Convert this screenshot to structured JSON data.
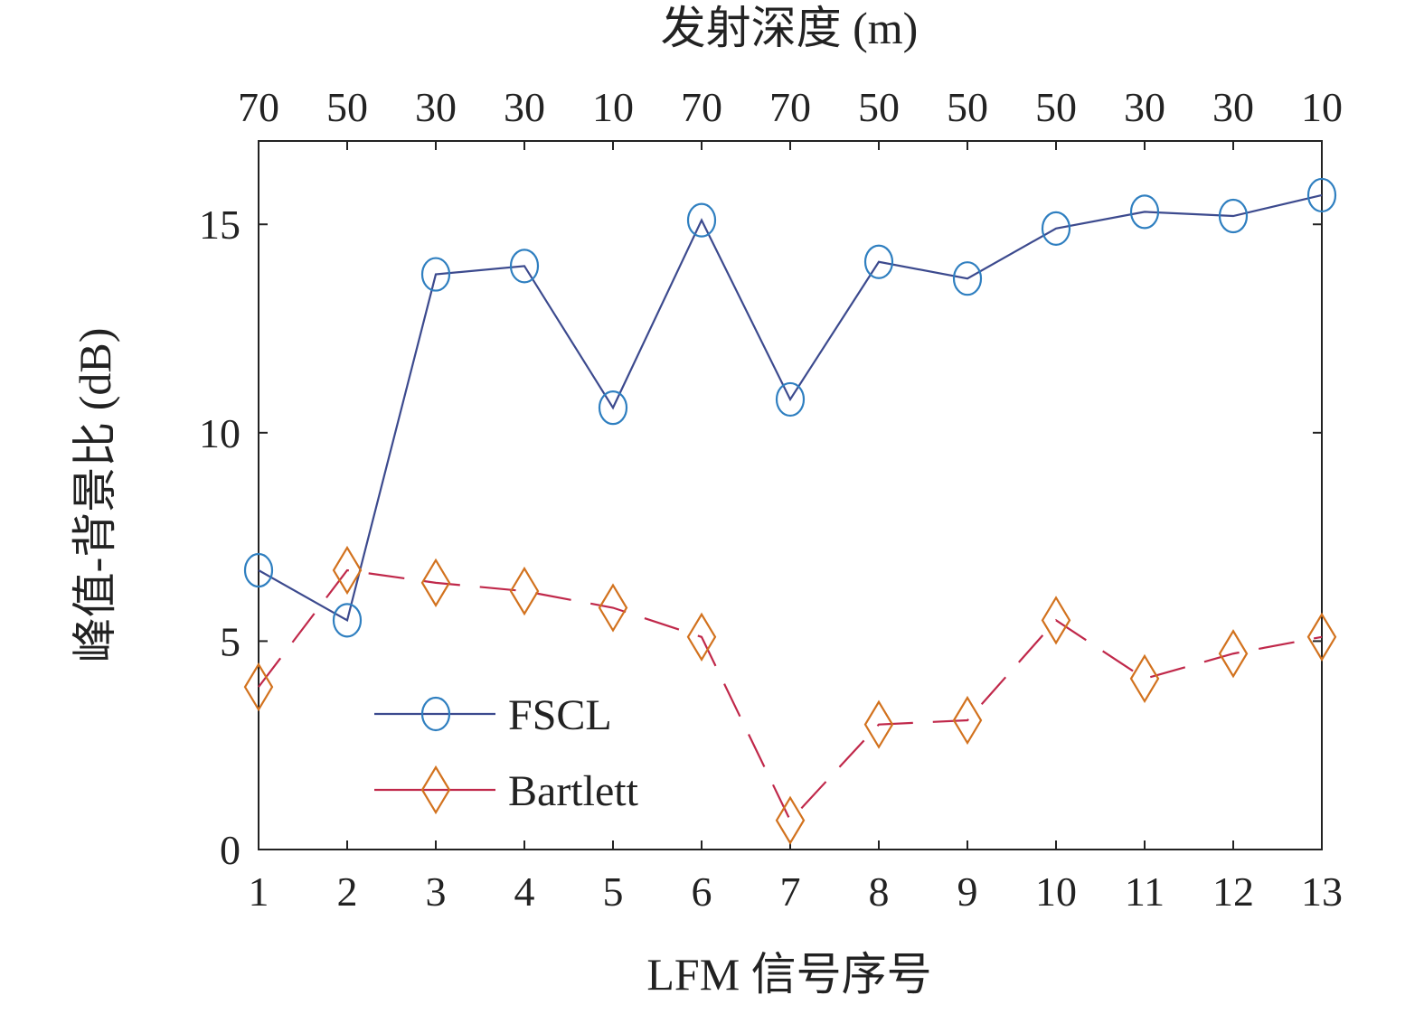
{
  "chart_data": {
    "type": "line",
    "xlabel": "LFM 信号序号",
    "ylabel": "峰值-背景比 (dB)",
    "top_axis_title": "发射深度 (m)",
    "x": [
      1,
      2,
      3,
      4,
      5,
      6,
      7,
      8,
      9,
      10,
      11,
      12,
      13
    ],
    "x_tick_labels": [
      "1",
      "2",
      "3",
      "4",
      "5",
      "6",
      "7",
      "8",
      "9",
      "10",
      "11",
      "12",
      "13"
    ],
    "top_tick_labels": [
      "70",
      "50",
      "30",
      "30",
      "10",
      "70",
      "70",
      "50",
      "50",
      "50",
      "30",
      "30",
      "10"
    ],
    "y_ticks": [
      0,
      5,
      10,
      15
    ],
    "y_tick_labels": [
      "0",
      "5",
      "10",
      "15"
    ],
    "xlim": [
      1,
      13
    ],
    "ylim": [
      0,
      17
    ],
    "grid": false,
    "legend_position": "bottom-left",
    "series": [
      {
        "name": "FSCL",
        "marker": "circle",
        "line_style": "solid",
        "line_color": "#3c4a8e",
        "marker_color": "#2f7fc0",
        "values": [
          6.7,
          5.5,
          13.8,
          14.0,
          10.6,
          15.1,
          10.8,
          14.1,
          13.7,
          14.9,
          15.3,
          15.2,
          15.7
        ]
      },
      {
        "name": "Bartlett",
        "marker": "diamond",
        "line_style": "dashed",
        "line_color": "#c0284a",
        "marker_color": "#d2721e",
        "values": [
          3.9,
          6.7,
          6.4,
          6.2,
          5.8,
          5.1,
          0.7,
          3.0,
          3.1,
          5.5,
          4.1,
          4.7,
          5.1
        ]
      }
    ]
  }
}
